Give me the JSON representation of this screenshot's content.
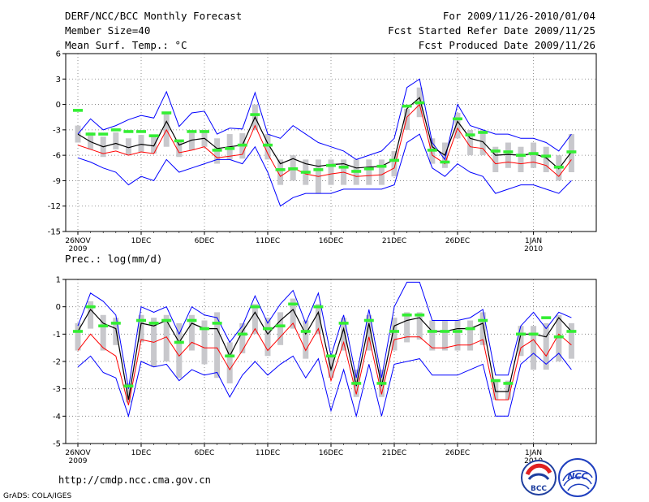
{
  "header": {
    "title": "DERF/NCC/BCC Monthly Forecast",
    "member_size": "Member Size=40",
    "variable": "Mean Surf. Temp.: °C",
    "period": "For 2009/11/26-2010/01/04",
    "started": "Fcst Started Refer Date 2009/11/25",
    "produced": "Fcst Produced Date 2009/11/26"
  },
  "footer": {
    "url": "http://cmdp.ncc.cma.gov.cn",
    "credit": "GrADS: COLA/IGES",
    "logo_bcc": "BCC",
    "logo_ncc": "NCC"
  },
  "colors": {
    "envelope": "#0000ff",
    "mean": "#ff0000",
    "median": "#000000",
    "clim": "#33ee33",
    "bar": "#c8c8cc",
    "grid": "#777777"
  },
  "chart_data": [
    {
      "type": "line",
      "title": "Mean Surf. Temp.: °C",
      "x_start": "2009-11-26",
      "x_ticks": [
        {
          "day": 0,
          "label": "26NOV",
          "sub": "2009"
        },
        {
          "day": 5,
          "label": "1DEC"
        },
        {
          "day": 10,
          "label": "6DEC"
        },
        {
          "day": 15,
          "label": "11DEC"
        },
        {
          "day": 20,
          "label": "16DEC"
        },
        {
          "day": 25,
          "label": "21DEC"
        },
        {
          "day": 30,
          "label": "26DEC"
        },
        {
          "day": 36,
          "label": "1JAN",
          "sub": "2010"
        }
      ],
      "ylim": [
        -15,
        6
      ],
      "yticks": [
        -15,
        -12,
        -9,
        -6,
        -3,
        0,
        3,
        6
      ],
      "series": [
        {
          "name": "ensemble max",
          "values": [
            -3.5,
            -1.7,
            -3.0,
            -2.5,
            -1.8,
            -1.3,
            -1.6,
            1.5,
            -2.6,
            -1.0,
            -0.8,
            -3.5,
            -2.8,
            -2.9,
            1.4,
            -3.5,
            -4.0,
            -2.5,
            -3.5,
            -4.5,
            -5.0,
            -5.5,
            -6.5,
            -6.0,
            -5.5,
            -4.0,
            2.0,
            3.0,
            -4.5,
            -6.5,
            0.0,
            -2.5,
            -3.0,
            -3.5,
            -3.5,
            -4.0,
            -4.0,
            -4.5,
            -5.5,
            -3.5
          ]
        },
        {
          "name": "ensemble min",
          "values": [
            -6.3,
            -6.8,
            -7.5,
            -8.0,
            -9.5,
            -8.5,
            -9.0,
            -6.5,
            -8.0,
            -7.5,
            -7.0,
            -6.5,
            -6.5,
            -7.0,
            -5.0,
            -8.0,
            -12.0,
            -11.0,
            -10.5,
            -10.5,
            -10.5,
            -10.0,
            -10.0,
            -10.0,
            -10.0,
            -9.5,
            -4.5,
            -3.5,
            -7.5,
            -8.5,
            -7.0,
            -8.0,
            -8.5,
            -10.5,
            -10.0,
            -9.5,
            -9.5,
            -10.0,
            -10.5,
            -9.0
          ]
        },
        {
          "name": "ensemble mean",
          "values": [
            -4.8,
            -5.3,
            -5.8,
            -5.5,
            -6.0,
            -5.6,
            -5.8,
            -3.0,
            -5.7,
            -5.4,
            -5.0,
            -6.3,
            -6.1,
            -5.9,
            -2.5,
            -5.8,
            -8.5,
            -7.5,
            -8.2,
            -8.5,
            -8.2,
            -8.0,
            -8.5,
            -8.4,
            -8.3,
            -7.5,
            -1.5,
            0.0,
            -6.0,
            -7.0,
            -2.8,
            -5.0,
            -5.2,
            -7.0,
            -6.8,
            -7.0,
            -6.8,
            -7.2,
            -8.5,
            -6.5
          ]
        },
        {
          "name": "ensemble median",
          "values": [
            -3.5,
            -4.4,
            -5.0,
            -4.6,
            -5.1,
            -4.7,
            -4.9,
            -2.0,
            -4.8,
            -4.2,
            -4.0,
            -5.2,
            -5.0,
            -4.8,
            -1.5,
            -4.6,
            -7.0,
            -6.4,
            -7.0,
            -7.3,
            -7.1,
            -7.0,
            -7.5,
            -7.4,
            -7.3,
            -6.5,
            -0.5,
            0.8,
            -5.0,
            -6.0,
            -2.0,
            -4.0,
            -4.4,
            -6.0,
            -5.9,
            -6.0,
            -5.8,
            -6.3,
            -7.6,
            -5.6
          ]
        },
        {
          "name": "climatology",
          "values": [
            -0.7,
            -3.5,
            -3.5,
            -3.0,
            -3.2,
            -3.2,
            -3.7,
            -1.0,
            -4.3,
            -3.2,
            -3.2,
            -5.4,
            -5.2,
            -4.8,
            -1.2,
            -4.8,
            -7.7,
            -7.6,
            -8.0,
            -7.7,
            -7.2,
            -7.4,
            -7.9,
            -7.6,
            -7.3,
            -6.6,
            -0.2,
            0.2,
            -5.4,
            -6.8,
            -1.7,
            -3.6,
            -3.3,
            -5.5,
            -5.6,
            -6.0,
            -5.8,
            -6.1,
            -7.4,
            -5.6
          ]
        }
      ],
      "boxes": {
        "low": [
          -4.5,
          -5.3,
          -6.2,
          -5.3,
          -6.0,
          -5.6,
          -5.8,
          -5.0,
          -6.2,
          -5.4,
          -5.0,
          -7.0,
          -6.5,
          -6.4,
          -3.0,
          -6.5,
          -9.5,
          -9.0,
          -9.5,
          -10.5,
          -9.5,
          -9.5,
          -9.5,
          -9.5,
          -9.5,
          -8.5,
          -3.0,
          -1.5,
          -7.0,
          -7.5,
          -4.0,
          -6.0,
          -6.0,
          -8.0,
          -7.5,
          -8.0,
          -7.5,
          -8.0,
          -9.0,
          -8.0
        ],
        "high": [
          -2.5,
          -3.3,
          -3.8,
          -3.3,
          -4.0,
          -3.6,
          -3.8,
          -1.0,
          -4.2,
          -3.4,
          -3.0,
          -4.0,
          -3.5,
          -3.4,
          0.0,
          -3.5,
          -6.5,
          -6.0,
          -6.5,
          -6.5,
          -6.5,
          -6.5,
          -6.5,
          -6.5,
          -6.5,
          -5.5,
          -0.5,
          2.0,
          -4.0,
          -4.5,
          -1.0,
          -3.0,
          -3.0,
          -5.0,
          -4.5,
          -5.0,
          -4.5,
          -5.0,
          -6.0,
          -3.5
        ]
      }
    },
    {
      "type": "line",
      "title": "Prec.: log(mm/d)",
      "x_start": "2009-11-26",
      "x_ticks": [
        {
          "day": 0,
          "label": "26NOV",
          "sub": "2009"
        },
        {
          "day": 5,
          "label": "1DEC"
        },
        {
          "day": 10,
          "label": "6DEC"
        },
        {
          "day": 15,
          "label": "11DEC"
        },
        {
          "day": 20,
          "label": "16DEC"
        },
        {
          "day": 25,
          "label": "21DEC"
        },
        {
          "day": 30,
          "label": "26DEC"
        },
        {
          "day": 36,
          "label": "1JAN",
          "sub": "2010"
        }
      ],
      "ylim": [
        -5,
        1
      ],
      "yticks": [
        -5,
        -4,
        -3,
        -2,
        -1,
        0,
        1
      ],
      "series": [
        {
          "name": "ensemble max",
          "values": [
            -0.7,
            0.5,
            0.2,
            -0.3,
            -3.0,
            0.0,
            -0.2,
            0.0,
            -1.0,
            0.0,
            -0.3,
            -0.4,
            -1.3,
            -0.7,
            0.4,
            -0.6,
            0.1,
            0.6,
            -0.6,
            0.5,
            -1.8,
            -0.3,
            -2.6,
            -0.1,
            -2.6,
            0.0,
            0.9,
            0.9,
            -0.5,
            -0.5,
            -0.5,
            -0.4,
            -0.1,
            -2.5,
            -2.5,
            -0.7,
            -0.2,
            -0.8,
            -0.2,
            -0.4
          ]
        },
        {
          "name": "ensemble min",
          "values": [
            -2.2,
            -1.8,
            -2.4,
            -2.6,
            -4.0,
            -2.0,
            -2.2,
            -2.1,
            -2.7,
            -2.3,
            -2.5,
            -2.4,
            -3.3,
            -2.5,
            -2.0,
            -2.5,
            -2.1,
            -1.8,
            -2.6,
            -1.9,
            -3.8,
            -2.3,
            -4.0,
            -2.1,
            -4.0,
            -2.1,
            -2.0,
            -1.9,
            -2.5,
            -2.5,
            -2.5,
            -2.3,
            -2.1,
            -4.0,
            -4.0,
            -2.1,
            -1.7,
            -2.1,
            -1.7,
            -2.3
          ]
        },
        {
          "name": "ensemble mean",
          "values": [
            -1.6,
            -1.0,
            -1.5,
            -1.8,
            -3.6,
            -1.2,
            -1.3,
            -1.1,
            -1.8,
            -1.3,
            -1.5,
            -1.5,
            -2.3,
            -1.6,
            -0.8,
            -1.6,
            -1.1,
            -0.6,
            -1.6,
            -0.8,
            -2.7,
            -1.3,
            -3.2,
            -1.1,
            -3.2,
            -1.2,
            -1.1,
            -1.1,
            -1.5,
            -1.5,
            -1.4,
            -1.4,
            -1.2,
            -3.4,
            -3.4,
            -1.5,
            -1.2,
            -1.8,
            -1.0,
            -1.4
          ]
        },
        {
          "name": "ensemble median",
          "values": [
            -0.9,
            -0.1,
            -0.6,
            -0.8,
            -3.4,
            -0.6,
            -0.7,
            -0.5,
            -1.3,
            -0.6,
            -0.8,
            -0.8,
            -1.8,
            -0.9,
            -0.2,
            -1.0,
            -0.5,
            -0.1,
            -1.0,
            -0.2,
            -2.3,
            -0.8,
            -2.9,
            -0.6,
            -2.9,
            -0.7,
            -0.5,
            -0.4,
            -0.9,
            -0.9,
            -0.8,
            -0.8,
            -0.6,
            -3.1,
            -3.1,
            -1.0,
            -1.0,
            -1.1,
            -0.4,
            -0.9
          ]
        },
        {
          "name": "climatology",
          "values": [
            -0.9,
            0.0,
            -0.7,
            -0.6,
            -2.9,
            -0.5,
            -0.6,
            -0.5,
            -1.3,
            -0.5,
            -0.8,
            -0.6,
            -1.8,
            -1.0,
            0.0,
            -0.8,
            -0.7,
            0.1,
            -0.9,
            0.0,
            -1.8,
            -0.6,
            -2.8,
            -0.5,
            -2.8,
            -0.9,
            -0.3,
            -0.3,
            -0.9,
            -0.9,
            -0.9,
            -0.8,
            -0.5,
            -2.7,
            -2.8,
            -1.0,
            -1.0,
            -0.4,
            -1.1,
            -0.9
          ]
        }
      ],
      "boxes": {
        "low": [
          -1.6,
          -0.8,
          -1.6,
          -1.4,
          -3.5,
          -1.3,
          -2.2,
          -2.0,
          -2.6,
          -1.6,
          -2.1,
          -2.6,
          -2.8,
          -1.7,
          -1.0,
          -1.8,
          -1.4,
          -0.8,
          -1.9,
          -1.0,
          -2.6,
          -1.6,
          -3.3,
          -1.6,
          -3.3,
          -1.6,
          -1.3,
          -1.2,
          -1.6,
          -1.6,
          -1.6,
          -1.6,
          -1.4,
          -3.4,
          -3.4,
          -1.8,
          -2.3,
          -2.3,
          -2.0,
          -1.9
        ],
        "high": [
          -0.6,
          0.2,
          -0.3,
          -0.4,
          -2.8,
          -0.3,
          -0.4,
          -0.3,
          -0.6,
          -0.3,
          -0.5,
          -0.2,
          -1.3,
          -0.6,
          0.1,
          -0.4,
          -0.2,
          0.3,
          -0.5,
          0.1,
          -1.8,
          -0.4,
          -2.3,
          -0.3,
          -2.3,
          -0.4,
          -0.2,
          -0.2,
          -0.5,
          -0.5,
          -0.5,
          -0.5,
          -0.2,
          -2.7,
          -2.7,
          -0.7,
          -0.7,
          -0.6,
          -0.3,
          -0.6
        ]
      }
    }
  ]
}
